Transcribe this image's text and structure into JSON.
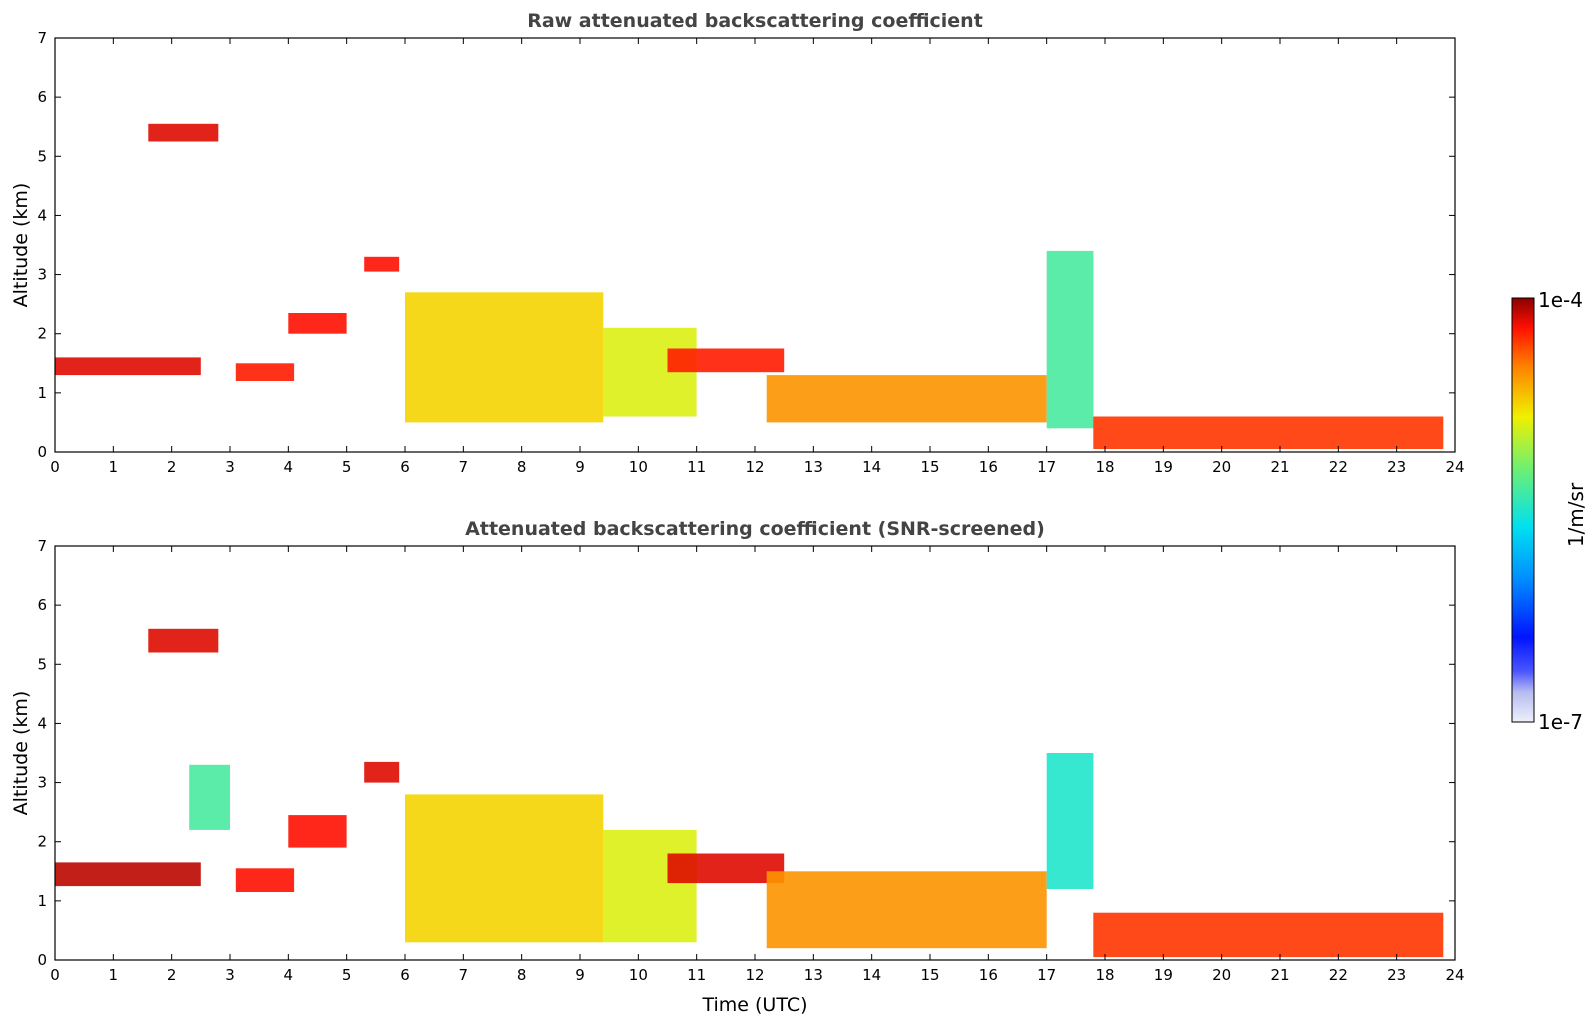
{
  "chart_data": [
    {
      "type": "heatmap",
      "title": "Raw attenuated backscattering coefficient",
      "xlabel": "",
      "ylabel": "Altitude (km)",
      "xlim": [
        0,
        24
      ],
      "ylim": [
        0,
        7
      ],
      "xticks": [
        "0",
        "1",
        "2",
        "3",
        "4",
        "5",
        "6",
        "7",
        "8",
        "9",
        "10",
        "11",
        "12",
        "13",
        "14",
        "15",
        "16",
        "17",
        "18",
        "19",
        "20",
        "21",
        "22",
        "23",
        "24"
      ],
      "yticks": [
        "0",
        "1",
        "2",
        "3",
        "4",
        "5",
        "6",
        "7"
      ],
      "features": [
        {
          "start": 0.0,
          "end": 2.5,
          "top": 1.6,
          "bottom": 1.3,
          "level": 0.95
        },
        {
          "start": 1.6,
          "end": 2.8,
          "top": 5.55,
          "bottom": 5.25,
          "level": 0.95
        },
        {
          "start": 3.1,
          "end": 4.1,
          "top": 1.5,
          "bottom": 1.2,
          "level": 0.92
        },
        {
          "start": 4.0,
          "end": 5.0,
          "top": 2.35,
          "bottom": 2.0,
          "level": 0.93
        },
        {
          "start": 5.3,
          "end": 5.9,
          "top": 3.3,
          "bottom": 3.05,
          "level": 0.93
        },
        {
          "start": 6.0,
          "end": 9.4,
          "top": 2.7,
          "bottom": 0.5,
          "level": 0.75
        },
        {
          "start": 9.4,
          "end": 11.0,
          "top": 2.1,
          "bottom": 0.6,
          "level": 0.7
        },
        {
          "start": 10.5,
          "end": 12.5,
          "top": 1.75,
          "bottom": 1.35,
          "level": 0.92
        },
        {
          "start": 12.2,
          "end": 17.0,
          "top": 1.3,
          "bottom": 0.5,
          "level": 0.82
        },
        {
          "start": 17.0,
          "end": 17.8,
          "top": 3.4,
          "bottom": 0.4,
          "level": 0.55
        },
        {
          "start": 17.8,
          "end": 23.8,
          "top": 0.6,
          "bottom": 0.05,
          "level": 0.9
        }
      ]
    },
    {
      "type": "heatmap",
      "title": "Attenuated backscattering coefficient (SNR-screened)",
      "xlabel": "Time (UTC)",
      "ylabel": "Altitude (km)",
      "xlim": [
        0,
        24
      ],
      "ylim": [
        0,
        7
      ],
      "xticks": [
        "0",
        "1",
        "2",
        "3",
        "4",
        "5",
        "6",
        "7",
        "8",
        "9",
        "10",
        "11",
        "12",
        "13",
        "14",
        "15",
        "16",
        "17",
        "18",
        "19",
        "20",
        "21",
        "22",
        "23",
        "24"
      ],
      "yticks": [
        "0",
        "1",
        "2",
        "3",
        "4",
        "5",
        "6",
        "7"
      ],
      "features": [
        {
          "start": 0.0,
          "end": 2.5,
          "top": 1.65,
          "bottom": 1.25,
          "level": 0.97
        },
        {
          "start": 1.6,
          "end": 2.8,
          "top": 5.6,
          "bottom": 5.2,
          "level": 0.95
        },
        {
          "start": 2.3,
          "end": 3.0,
          "top": 3.3,
          "bottom": 2.2,
          "level": 0.55
        },
        {
          "start": 3.1,
          "end": 4.1,
          "top": 1.55,
          "bottom": 1.15,
          "level": 0.93
        },
        {
          "start": 4.0,
          "end": 5.0,
          "top": 2.45,
          "bottom": 1.9,
          "level": 0.93
        },
        {
          "start": 5.3,
          "end": 5.9,
          "top": 3.35,
          "bottom": 3.0,
          "level": 0.95
        },
        {
          "start": 6.0,
          "end": 9.4,
          "top": 2.8,
          "bottom": 0.3,
          "level": 0.75
        },
        {
          "start": 9.4,
          "end": 11.0,
          "top": 2.2,
          "bottom": 0.3,
          "level": 0.7
        },
        {
          "start": 10.5,
          "end": 12.5,
          "top": 1.8,
          "bottom": 1.3,
          "level": 0.95
        },
        {
          "start": 12.2,
          "end": 17.0,
          "top": 1.5,
          "bottom": 0.2,
          "level": 0.82
        },
        {
          "start": 17.0,
          "end": 17.8,
          "top": 3.5,
          "bottom": 1.2,
          "level": 0.5
        },
        {
          "start": 17.8,
          "end": 23.8,
          "top": 0.8,
          "bottom": 0.05,
          "level": 0.9
        }
      ]
    }
  ],
  "colorbar": {
    "label": "1/m/sr",
    "max_label": "1e-4",
    "min_label": "1e-7",
    "scale": "log",
    "colormap": "jet"
  }
}
